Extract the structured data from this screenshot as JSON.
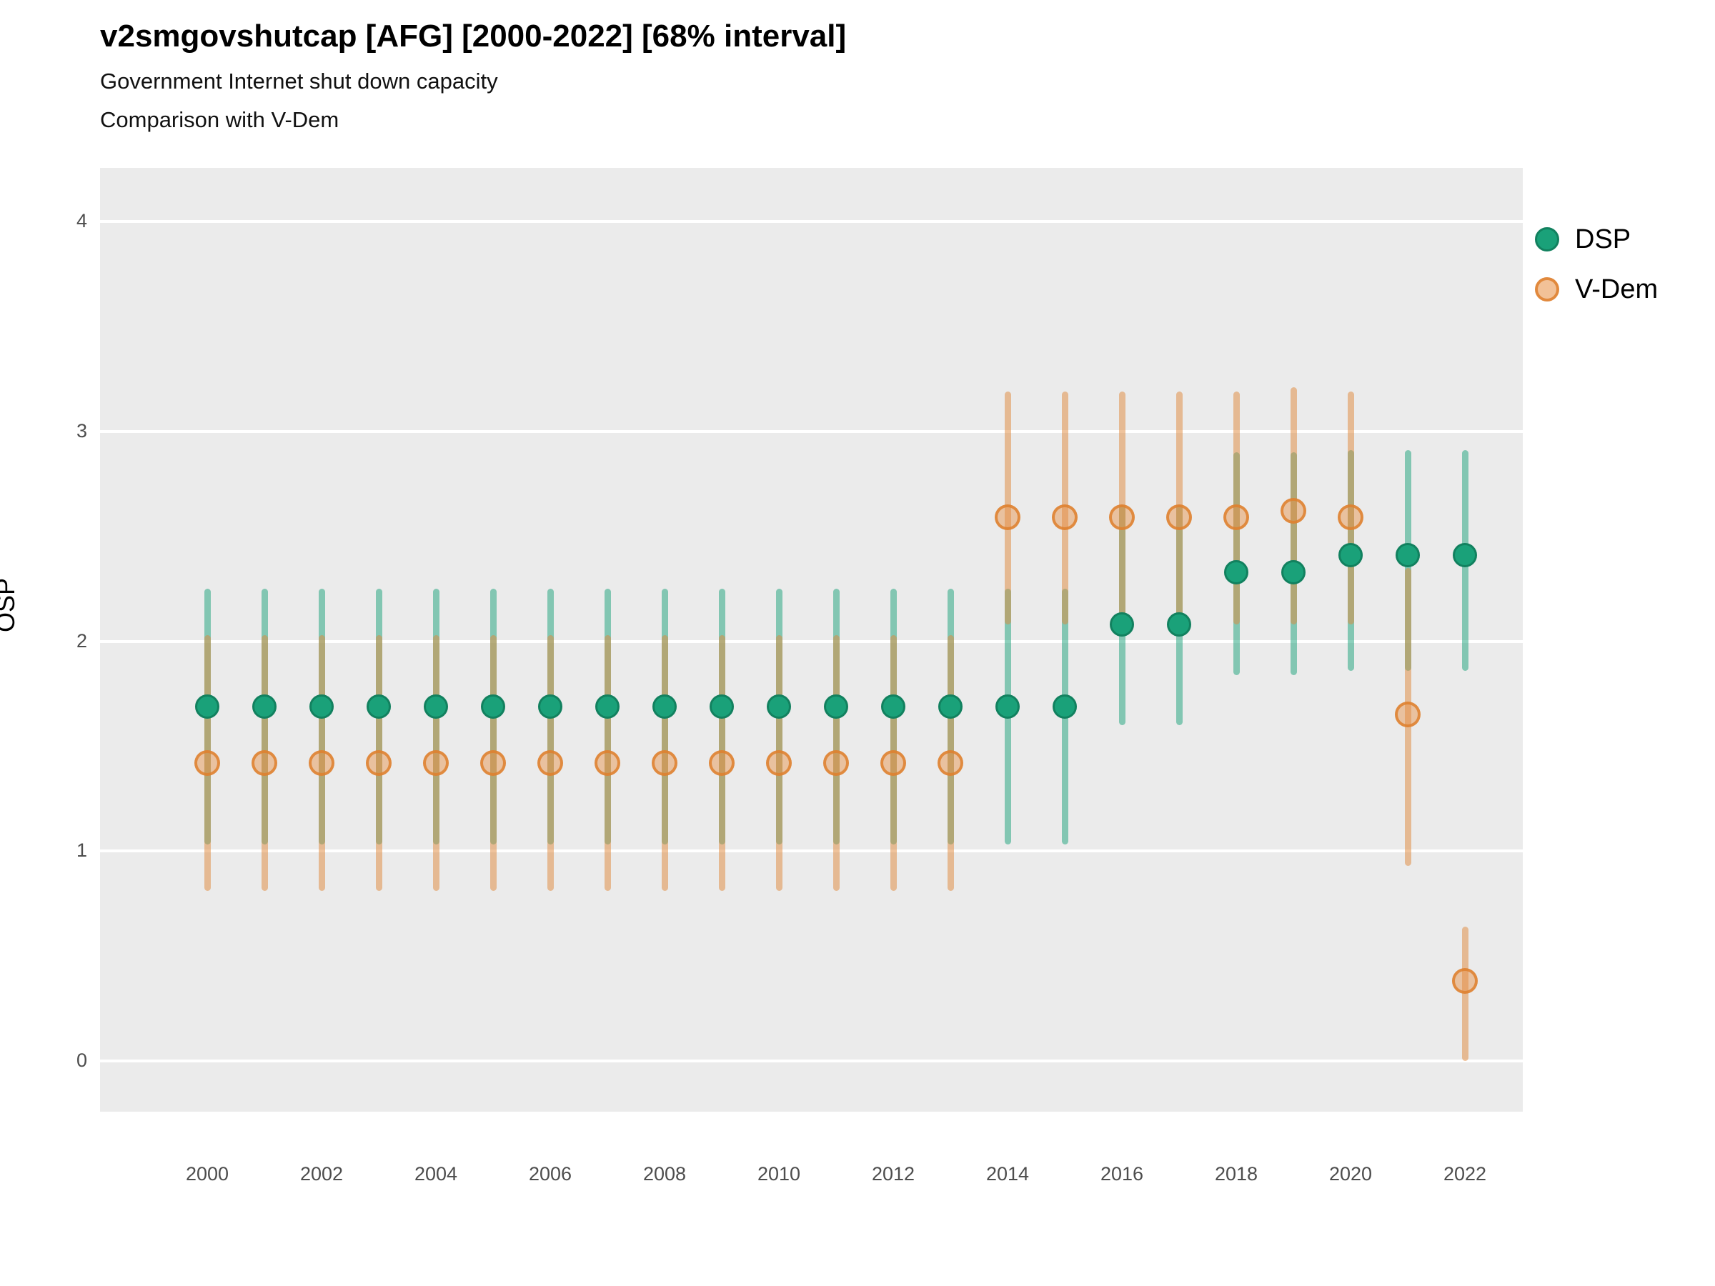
{
  "header": {
    "title": "v2smgovshutcap [AFG] [2000-2022] [68% interval]",
    "subtitle1": "Government Internet shut down capacity",
    "subtitle2": "Comparison with V-Dem"
  },
  "colors": {
    "dsp_point": "#1aa179",
    "dsp_point_stroke": "#12815f",
    "dsp_bar": "rgba(26,161,121,0.5)",
    "vdem_point_fill": "rgba(231,142,66,0.45)",
    "vdem_point_stroke": "rgba(222,128,46,0.85)",
    "vdem_bar": "rgba(224,135,58,0.5)",
    "plot_background": "#ebebeb",
    "gridline": "#ffffff",
    "tick_text": "#4d4d4d"
  },
  "chart_data": {
    "type": "scatter",
    "title": "v2smgovshutcap [AFG] [2000-2022] [68% interval]",
    "subtitle": "Government Internet shut down capacity",
    "comparison_note": "Comparison with V-Dem",
    "interval_level": "68%",
    "country": "AFG",
    "ylabel": "OSP",
    "xlabel": "",
    "ylim": [
      -0.25,
      4.25
    ],
    "yticks": [
      0,
      1,
      2,
      3,
      4
    ],
    "xticks": [
      2000,
      2002,
      2004,
      2006,
      2008,
      2010,
      2012,
      2014,
      2016,
      2018,
      2020,
      2022
    ],
    "grid": "horizontal-major-only",
    "legend_position": "right",
    "x": [
      2000,
      2001,
      2002,
      2003,
      2004,
      2005,
      2006,
      2007,
      2008,
      2009,
      2010,
      2011,
      2012,
      2013,
      2014,
      2015,
      2016,
      2017,
      2018,
      2019,
      2020,
      2021,
      2022
    ],
    "series": [
      {
        "name": "DSP",
        "points": [
          1.69,
          1.69,
          1.69,
          1.69,
          1.69,
          1.69,
          1.69,
          1.69,
          1.69,
          1.69,
          1.69,
          1.69,
          1.69,
          1.69,
          1.69,
          1.69,
          2.08,
          2.08,
          2.33,
          2.33,
          2.41,
          2.41,
          2.41
        ],
        "lo": [
          1.03,
          1.03,
          1.03,
          1.03,
          1.03,
          1.03,
          1.03,
          1.03,
          1.03,
          1.03,
          1.03,
          1.03,
          1.03,
          1.03,
          1.03,
          1.03,
          1.6,
          1.6,
          1.84,
          1.84,
          1.86,
          1.86,
          1.86
        ],
        "hi": [
          2.25,
          2.25,
          2.25,
          2.25,
          2.25,
          2.25,
          2.25,
          2.25,
          2.25,
          2.25,
          2.25,
          2.25,
          2.25,
          2.25,
          2.25,
          2.25,
          2.65,
          2.65,
          2.9,
          2.9,
          2.91,
          2.91,
          2.91
        ]
      },
      {
        "name": "V-Dem",
        "points": [
          1.42,
          1.42,
          1.42,
          1.42,
          1.42,
          1.42,
          1.42,
          1.42,
          1.42,
          1.42,
          1.42,
          1.42,
          1.42,
          1.42,
          2.59,
          2.59,
          2.59,
          2.59,
          2.59,
          2.62,
          2.59,
          1.65,
          0.38
        ],
        "lo": [
          0.81,
          0.81,
          0.81,
          0.81,
          0.81,
          0.81,
          0.81,
          0.81,
          0.81,
          0.81,
          0.81,
          0.81,
          0.81,
          0.81,
          2.08,
          2.08,
          2.07,
          2.07,
          2.08,
          2.08,
          2.08,
          0.93,
          0.0
        ],
        "hi": [
          2.03,
          2.03,
          2.03,
          2.03,
          2.03,
          2.03,
          2.03,
          2.03,
          2.03,
          2.03,
          2.03,
          2.03,
          2.03,
          2.03,
          3.19,
          3.19,
          3.19,
          3.19,
          3.19,
          3.21,
          3.19,
          2.35,
          0.64
        ]
      }
    ]
  },
  "legend": {
    "entries": [
      {
        "label": "DSP"
      },
      {
        "label": "V-Dem"
      }
    ]
  }
}
